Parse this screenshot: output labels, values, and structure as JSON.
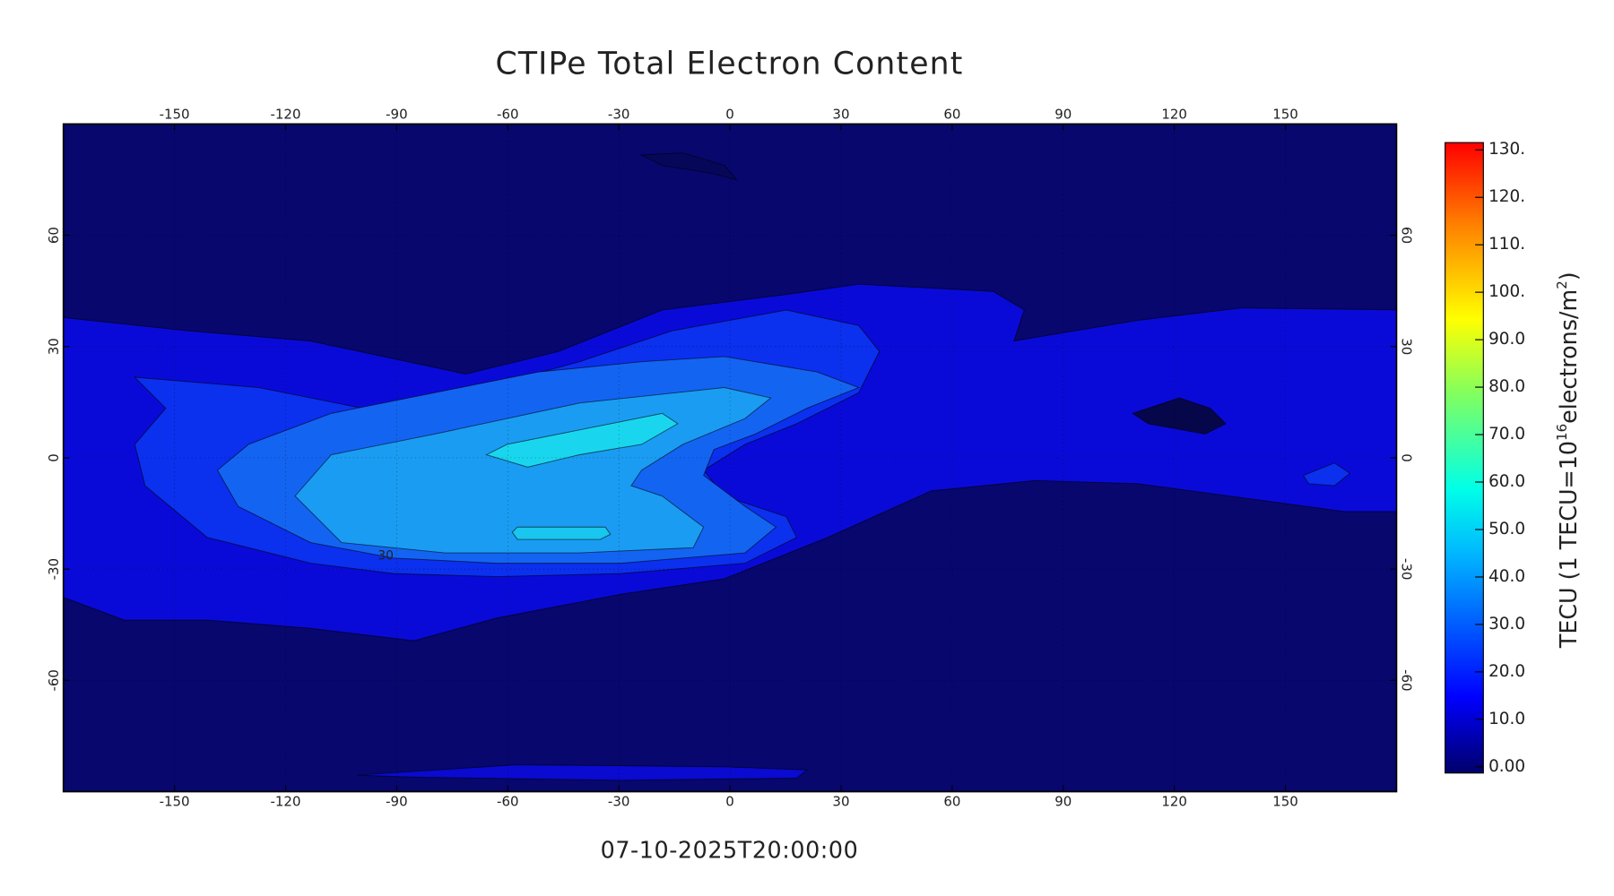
{
  "title": "CTIPe Total Electron Content",
  "timestamp": "07-10-2025T20:00:00",
  "map": {
    "xlim": [
      -180,
      180
    ],
    "ylim": [
      -90,
      90
    ],
    "xticks": [
      -150,
      -120,
      -90,
      -60,
      -30,
      0,
      30,
      60,
      90,
      120,
      150
    ],
    "yticks": [
      -60,
      -30,
      0,
      30,
      60
    ],
    "grid": true,
    "contour_label": "30"
  },
  "colorbar": {
    "lim": [
      0,
      130
    ],
    "ticks": [
      {
        "value": 0,
        "label": "0.00"
      },
      {
        "value": 10,
        "label": "10.0"
      },
      {
        "value": 20,
        "label": "20.0"
      },
      {
        "value": 30,
        "label": "30.0"
      },
      {
        "value": 40,
        "label": "40.0"
      },
      {
        "value": 50,
        "label": "50.0"
      },
      {
        "value": 60,
        "label": "60.0"
      },
      {
        "value": 70,
        "label": "70.0"
      },
      {
        "value": 80,
        "label": "80.0"
      },
      {
        "value": 90,
        "label": "90.0"
      },
      {
        "value": 100,
        "label": "100."
      },
      {
        "value": 110,
        "label": "110."
      },
      {
        "value": 120,
        "label": "120."
      },
      {
        "value": 130,
        "label": "130."
      }
    ],
    "label_parts": [
      "TECU (1 TECU=10",
      "16",
      "electrons/m",
      "2",
      ")"
    ]
  }
}
